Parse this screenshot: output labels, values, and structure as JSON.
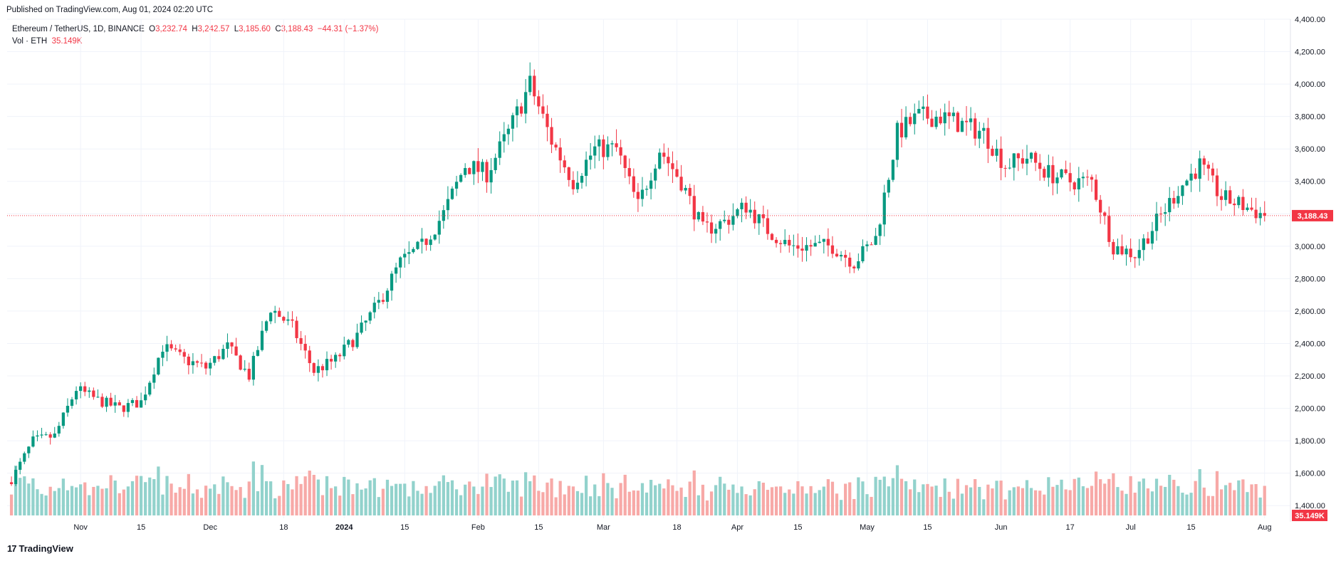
{
  "publish_line": "Published on TradingView.com, Aug 01, 2024 02:20 UTC",
  "legend": {
    "symbol": "Ethereum / TetherUS, 1D, BINANCE",
    "o_label": "O",
    "o_value": "3,232.74",
    "h_label": "H",
    "h_value": "3,242.57",
    "l_label": "L",
    "l_value": "3,185.60",
    "c_label": "C",
    "c_value": "3,188.43",
    "change": "−44.31 (−1.37%)",
    "vol_label": "Vol · ETH",
    "vol_value": "35.149K"
  },
  "brand": {
    "logo": "17",
    "name": "TradingView"
  },
  "colors": {
    "up": "#089981",
    "down": "#f23645",
    "up_vol": "#92d2cc",
    "down_vol": "#f7a9a7",
    "grid": "#f0f3fa"
  },
  "chart_data": {
    "type": "candlestick",
    "symbol": "ETHUSDT",
    "interval": "1D",
    "y_axis": {
      "min": 1300,
      "max": 4400,
      "ticks": [
        1400,
        1600,
        1800,
        2000,
        2200,
        2400,
        2600,
        2800,
        3000,
        3200,
        3400,
        3600,
        3800,
        4000,
        4200,
        4400
      ],
      "tick_labels": [
        "1,400.00",
        "1,600.00",
        "1,800.00",
        "2,000.00",
        "2,200.00",
        "2,400.00",
        "2,600.00",
        "2,800.00",
        "3,000.00",
        "3,200.00",
        "3,400.00",
        "3,600.00",
        "3,800.00",
        "4,000.00",
        "4,200.00",
        "4,400.00"
      ]
    },
    "x_axis": {
      "start": "2023-10-15",
      "end": "2024-08-05",
      "labels": [
        {
          "date": "2023-11-01",
          "text": "Nov",
          "bold": false
        },
        {
          "date": "2023-11-15",
          "text": "15",
          "bold": false
        },
        {
          "date": "2023-12-01",
          "text": "Dec",
          "bold": false
        },
        {
          "date": "2023-12-18",
          "text": "18",
          "bold": false
        },
        {
          "date": "2024-01-01",
          "text": "2024",
          "bold": true
        },
        {
          "date": "2024-01-15",
          "text": "15",
          "bold": false
        },
        {
          "date": "2024-02-01",
          "text": "Feb",
          "bold": false
        },
        {
          "date": "2024-02-15",
          "text": "15",
          "bold": false
        },
        {
          "date": "2024-03-01",
          "text": "Mar",
          "bold": false
        },
        {
          "date": "2024-03-18",
          "text": "18",
          "bold": false
        },
        {
          "date": "2024-04-01",
          "text": "Apr",
          "bold": false
        },
        {
          "date": "2024-04-15",
          "text": "15",
          "bold": false
        },
        {
          "date": "2024-05-01",
          "text": "May",
          "bold": false
        },
        {
          "date": "2024-05-15",
          "text": "15",
          "bold": false
        },
        {
          "date": "2024-06-01",
          "text": "Jun",
          "bold": false
        },
        {
          "date": "2024-06-17",
          "text": "17",
          "bold": false
        },
        {
          "date": "2024-07-01",
          "text": "Jul",
          "bold": false
        },
        {
          "date": "2024-07-15",
          "text": "15",
          "bold": false
        },
        {
          "date": "2024-08-01",
          "text": "Aug",
          "bold": false
        }
      ]
    },
    "close_path": {
      "start_date": "2023-10-16",
      "end_date": "2024-08-01",
      "closes": [
        1560,
        1800,
        1830,
        2120,
        2050,
        2000,
        2040,
        2380,
        2300,
        2250,
        2380,
        2200,
        2620,
        2500,
        2230,
        2300,
        2450,
        2650,
        2900,
        3000,
        3200,
        3500,
        3450,
        3700,
        4000,
        3650,
        3400,
        3600,
        3600,
        3250,
        3600,
        3400,
        3100,
        3150,
        3250,
        3100,
        3000,
        3000,
        3000,
        2900,
        3050,
        3700,
        3800,
        3800,
        3750,
        3700,
        3500,
        3550,
        3450,
        3400,
        3400,
        3000,
        2950,
        3150,
        3350,
        3500,
        3300,
        3250,
        3188.43
      ],
      "volume_base_k": 440
    },
    "last_price": 3188.43,
    "last_price_label": "3,188.43",
    "last_volume_label": "35.149K"
  }
}
